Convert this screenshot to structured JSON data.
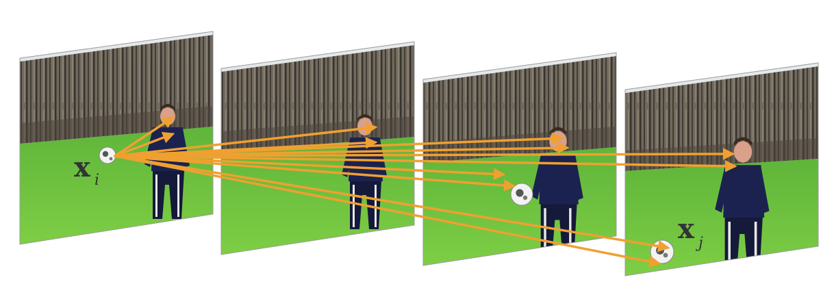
{
  "labels": {
    "xi": {
      "base": "x",
      "sub": "i"
    },
    "xj": {
      "base": "x",
      "sub": "j"
    }
  },
  "frames": [
    {
      "name": "frame-1"
    },
    {
      "name": "frame-2"
    },
    {
      "name": "frame-3"
    },
    {
      "name": "frame-4"
    }
  ],
  "colors": {
    "arrow": "#f0a030",
    "sky": "#dde3e6",
    "trees": "#4e463c",
    "grass": "#6fc23e",
    "grass_dark": "#4f9c2a",
    "player_shirt": "#1c2250",
    "player_pants": "#15193a",
    "skin": "#d9a08a",
    "ball": "#f2f2f2"
  }
}
